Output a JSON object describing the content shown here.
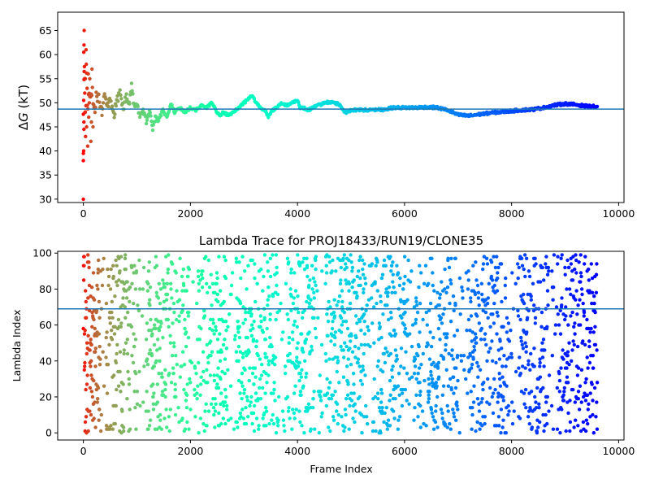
{
  "chart_data": [
    {
      "type": "scatter",
      "title": "",
      "xlabel": "",
      "ylabel": "ΔG (kT)",
      "ylabel_parts": {
        "delta": "Δ",
        "symbol": "G",
        "unit": " (kT)"
      },
      "xlim": [
        -480,
        10100
      ],
      "ylim": [
        29.3,
        68.8
      ],
      "xticks": [
        0,
        2000,
        4000,
        6000,
        8000,
        10000
      ],
      "yticks": [
        30,
        35,
        40,
        45,
        50,
        55,
        60,
        65
      ],
      "hline": 48.7,
      "hline_color": "#1f77b4",
      "colormap": "rainbow (reversed over frame index)",
      "n_frames": 9600,
      "series": [
        {
          "trace_x": [
            0,
            20,
            40,
            60,
            80,
            100,
            130,
            160,
            200,
            250,
            300,
            350,
            400,
            450,
            500,
            560,
            620,
            680,
            740,
            800,
            860,
            900,
            950,
            1000,
            1060,
            1120,
            1180,
            1240,
            1300,
            1340,
            1400,
            1480,
            1560,
            1640,
            1700,
            1800,
            1900,
            2000,
            2100,
            2200,
            2300,
            2400,
            2500,
            2560,
            2600,
            2700,
            2800,
            2900,
            3000,
            3100,
            3150,
            3200,
            3300,
            3400,
            3450,
            3500,
            3600,
            3700,
            3800,
            3900,
            4000,
            4050,
            4100,
            4200,
            4300,
            4400,
            4500,
            4600,
            4700,
            4800,
            4850,
            4900,
            5000,
            5200,
            5400,
            5600,
            5800,
            6000,
            6200,
            6400,
            6600,
            6800,
            7000,
            7200,
            7400,
            7600,
            7800,
            8000,
            8200,
            8400,
            8600,
            8800,
            9000,
            9200,
            9400,
            9600
          ],
          "trace_y": [
            49,
            58,
            44,
            56,
            47,
            54,
            50,
            53,
            48,
            52,
            50,
            48,
            52,
            49,
            51,
            47,
            50,
            52,
            49,
            51,
            50,
            53.5,
            49,
            50,
            47,
            48.5,
            46,
            49,
            44.5,
            47,
            46,
            48.5,
            47,
            50,
            48,
            49,
            48,
            49,
            48.5,
            49.5,
            49,
            50,
            48,
            47,
            48,
            47.5,
            48,
            49,
            50,
            51,
            51.5,
            50.5,
            49,
            48.5,
            47,
            48,
            49,
            50,
            49.5,
            50,
            50.5,
            49,
            49,
            48.5,
            49,
            49.5,
            50,
            50.2,
            50,
            49.5,
            48.5,
            48,
            48.5,
            48.5,
            48.5,
            48.6,
            49,
            49,
            49,
            49.1,
            49,
            48.5,
            47.5,
            47.3,
            47.6,
            47.9,
            48.1,
            48.3,
            48.5,
            48.6,
            49,
            49.5,
            49.8,
            49.6,
            49.3,
            49.2
          ],
          "early_points": [
            [
              0,
              30
            ],
            [
              0,
              38
            ],
            [
              0,
              39.5
            ],
            [
              5,
              40
            ],
            [
              10,
              44.5
            ],
            [
              10,
              46
            ],
            [
              5,
              50.5
            ],
            [
              15,
              56.5
            ],
            [
              20,
              57.5
            ],
            [
              8,
              60.5
            ],
            [
              12,
              62
            ],
            [
              15,
              65
            ],
            [
              25,
              52
            ],
            [
              30,
              48
            ],
            [
              35,
              55
            ],
            [
              40,
              43
            ],
            [
              50,
              61
            ],
            [
              55,
              58
            ],
            [
              60,
              45
            ],
            [
              70,
              53
            ],
            [
              80,
              41
            ],
            [
              90,
              56
            ],
            [
              100,
              47
            ],
            [
              110,
              50
            ],
            [
              120,
              55
            ],
            [
              140,
              42
            ],
            [
              150,
              46
            ],
            [
              160,
              57
            ],
            [
              180,
              45
            ],
            [
              200,
              49
            ]
          ]
        }
      ]
    },
    {
      "type": "scatter",
      "title": "Lambda Trace for PROJ18433/RUN19/CLONE35",
      "xlabel": "Frame Index",
      "ylabel": "Lambda Index",
      "xlim": [
        -480,
        10100
      ],
      "ylim": [
        -4,
        101
      ],
      "xticks": [
        0,
        2000,
        4000,
        6000,
        8000,
        10000
      ],
      "yticks": [
        0,
        20,
        40,
        60,
        80,
        100
      ],
      "hline": 69,
      "hline_color": "#1f77b4",
      "colormap": "rainbow (reversed over frame index)",
      "n_frames": 9600,
      "lambda_range": [
        0,
        99
      ],
      "series": [
        {
          "distribution": "lambda index sampled uniformly across 0–99 for every frame, with sparse density gaps"
        }
      ]
    }
  ]
}
